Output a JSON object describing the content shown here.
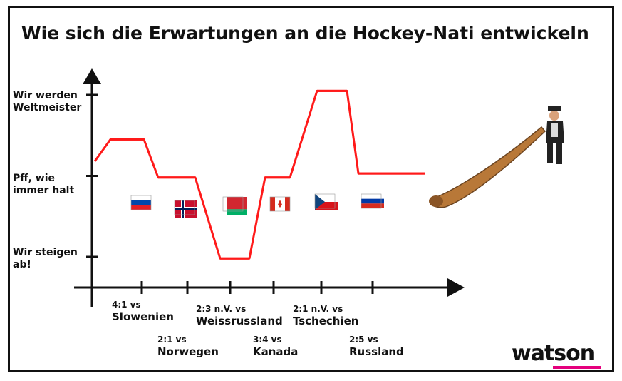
{
  "title": "Wie sich die Erwartungen an die Hockey-Nati entwickeln",
  "brand": {
    "name": "watson",
    "accent": "#e5007d"
  },
  "colors": {
    "line": "#ff1a1a",
    "axis": "#111111"
  },
  "chart_data": {
    "type": "line",
    "title": "Wie sich die Erwartungen an die Hockey-Nati entwickeln",
    "y_levels": [
      {
        "label_line1": "Wir werden",
        "label_line2": "Weltmeister",
        "value": 3
      },
      {
        "label_line1": "Pff, wie",
        "label_line2": "immer halt",
        "value": 2
      },
      {
        "label_line1": "Wir steigen",
        "label_line2": "ab!",
        "value": 1
      }
    ],
    "categories": [
      {
        "score": "4:1 vs",
        "opponent": "Slowenien",
        "flag": "slovenia-flag"
      },
      {
        "score": "2:1 vs",
        "opponent": "Norwegen",
        "flag": "norway-flag"
      },
      {
        "score": "2:3 n.V. vs",
        "opponent": "Weissrussland",
        "flag": "belarus-flag"
      },
      {
        "score": "3:4 vs",
        "opponent": "Kanada",
        "flag": "canada-flag"
      },
      {
        "score": "2:1 n.V. vs",
        "opponent": "Tschechien",
        "flag": "czechia-flag"
      },
      {
        "score": "2:5 vs",
        "opponent": "Russland",
        "flag": "russia-flag"
      }
    ],
    "series": [
      {
        "values": [
          2.45,
          1.98,
          0.98,
          1.98,
          3.05,
          2.03
        ]
      }
    ],
    "ylim": [
      0.8,
      3.4
    ],
    "grid": false,
    "legend": "none"
  },
  "decorations": {
    "right_figure": "alphorn-player"
  }
}
